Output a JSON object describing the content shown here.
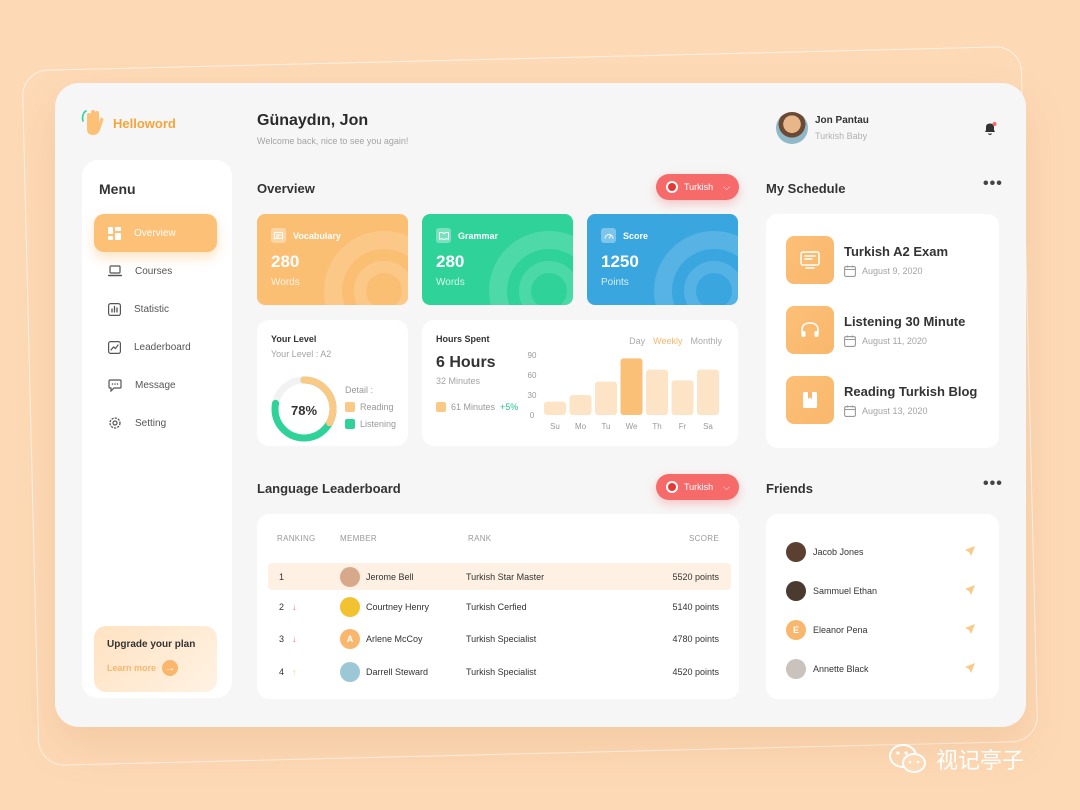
{
  "brand": {
    "name": "Helloword",
    "icon": "waving-hand-icon"
  },
  "header": {
    "greeting": "Günaydın, Jon",
    "subtitle": "Welcome back, nice to see you again!",
    "user_name": "Jon Pantau",
    "user_role": "Turkish Baby"
  },
  "menu": {
    "title": "Menu",
    "items": [
      {
        "label": "Overview",
        "icon": "grid-icon",
        "active": true
      },
      {
        "label": "Courses",
        "icon": "laptop-icon",
        "active": false
      },
      {
        "label": "Statistic",
        "icon": "bar-chart-icon",
        "active": false
      },
      {
        "label": "Leaderboard",
        "icon": "trend-icon",
        "active": false
      },
      {
        "label": "Message",
        "icon": "chat-icon",
        "active": false
      },
      {
        "label": "Setting",
        "icon": "gear-icon",
        "active": false
      }
    ],
    "upgrade_title": "Upgrade your plan",
    "learn_more": "Learn more"
  },
  "overview": {
    "title": "Overview",
    "language": "Turkish",
    "cards": [
      {
        "label": "Vocabulary",
        "value": "280",
        "unit": "Words",
        "color": "#fbbf74"
      },
      {
        "label": "Grammar",
        "value": "280",
        "unit": "Words",
        "color": "#2fd39a"
      },
      {
        "label": "Score",
        "value": "1250",
        "unit": "Points",
        "color": "#3aa6e0"
      }
    ]
  },
  "level": {
    "title": "Your Level",
    "subtitle": "Your Level : A2",
    "percent": "78%",
    "percent_value": 78,
    "detail_label": "Detail :",
    "legend": [
      {
        "label": "Reading",
        "color": "#fbc986"
      },
      {
        "label": "Listening",
        "color": "#2fd39a"
      }
    ]
  },
  "hours": {
    "title": "Hours Spent",
    "tabs": [
      "Day",
      "Weekly",
      "Monthly"
    ],
    "active_tab": "Weekly",
    "value": "6 Hours",
    "sub": "32 Minutes",
    "minutes_label": "61 Minutes",
    "minutes_change": "+5%"
  },
  "chart_data": {
    "type": "bar",
    "categories": [
      "Su",
      "Mo",
      "Tu",
      "We",
      "Th",
      "Fr",
      "Sa"
    ],
    "values": [
      20,
      30,
      50,
      85,
      68,
      52,
      68
    ],
    "highlight": "We",
    "y_ticks": [
      "90",
      "60",
      "30",
      "0"
    ],
    "ylim": [
      0,
      90
    ],
    "grid": false,
    "legend": "none"
  },
  "schedule": {
    "title": "My Schedule",
    "items": [
      {
        "title": "Turkish A2 Exam",
        "date": "August 9, 2020",
        "icon": "exam-icon"
      },
      {
        "title": "Listening 30 Minute",
        "date": "August 11, 2020",
        "icon": "headphones-icon"
      },
      {
        "title": "Reading Turkish Blog",
        "date": "August 13, 2020",
        "icon": "book-icon"
      }
    ]
  },
  "leaderboard": {
    "title": "Language Leaderboard",
    "language": "Turkish",
    "columns": {
      "ranking": "RANKING",
      "member": "MEMBER",
      "rank": "RANK",
      "score": "SCORE"
    },
    "rows": [
      {
        "pos": "1",
        "trend": "",
        "name": "Jerome Bell",
        "rank": "Turkish Star Master",
        "score": "5520 points",
        "initial": "",
        "avatar_color": "#d7a98a"
      },
      {
        "pos": "2",
        "trend": "down",
        "name": "Courtney Henry",
        "rank": "Turkish Cerfied",
        "score": "5140 points",
        "initial": "",
        "avatar_color": "#f2c230"
      },
      {
        "pos": "3",
        "trend": "down",
        "name": "Arlene McCoy",
        "rank": "Turkish Specialist",
        "score": "4780 points",
        "initial": "A",
        "avatar_color": "#f8b76d"
      },
      {
        "pos": "4",
        "trend": "up",
        "name": "Darrell Steward",
        "rank": "Turkish Specialist",
        "score": "4520 points",
        "initial": "",
        "avatar_color": "#9cc7d6"
      }
    ]
  },
  "friends": {
    "title": "Friends",
    "items": [
      {
        "name": "Jacob Jones",
        "initial": "",
        "color": "#5b4031"
      },
      {
        "name": "Sammuel Ethan",
        "initial": "",
        "color": "#4a3a30"
      },
      {
        "name": "Eleanor Pena",
        "initial": "E",
        "color": "#f8b76d"
      },
      {
        "name": "Annette Black",
        "initial": "",
        "color": "#c9c2bd"
      }
    ]
  },
  "watermark": "视记亭子"
}
